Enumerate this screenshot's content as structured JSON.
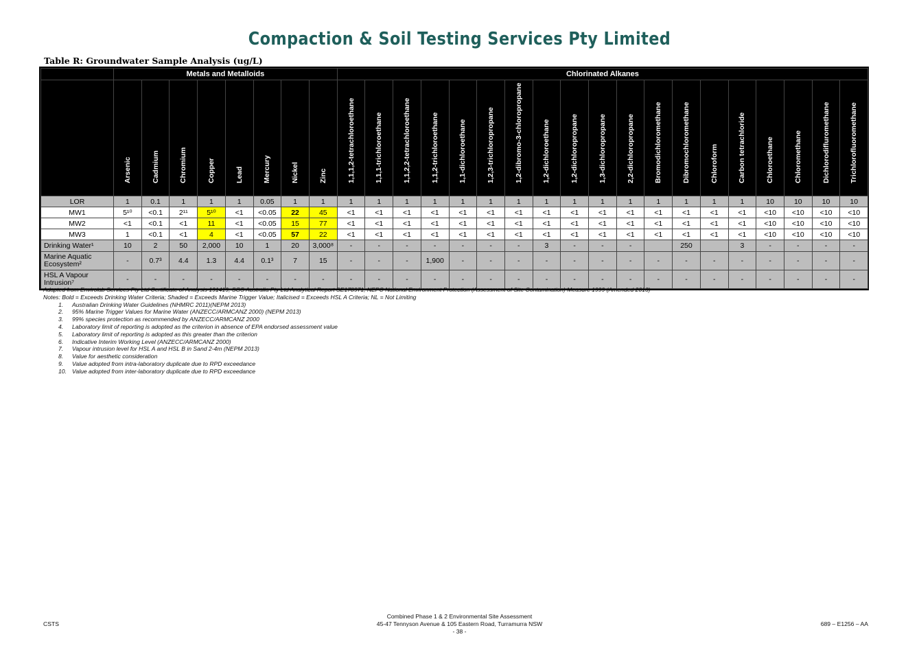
{
  "company": "Compaction & Soil Testing Services Pty Limited",
  "table_title": "Table R: Groundwater Sample Analysis (ug/L)",
  "groups": [
    "Metals and Metalloids",
    "Chlorinated Alkanes"
  ],
  "columns": [
    "Arsenic",
    "Cadmium",
    "Chromium",
    "Copper",
    "Lead",
    "Mercury",
    "Nickel",
    "Zinc",
    "1,1,1,2-tetrachloroethane",
    "1,1,1-trichloroethane",
    "1,1,2,2-tetrachloroethane",
    "1,1,2-trichloroethane",
    "1,1-dichloroethane",
    "1,2,3-trichloropropane",
    "1,2-dibromo-3-chloropropane",
    "1,2-dichloroethane",
    "1,2-dichloropropane",
    "1,3-dichloropropane",
    "2,2-dichloropropane",
    "Bromodichloromethane",
    "Dibromochloromethane",
    "Chloroform",
    "Carbon tetrachloride",
    "Chloroethane",
    "Chloromethane",
    "Dichlorodifluromethane",
    "Trichlorofluoromethane"
  ],
  "rows": [
    {
      "label": "LOR",
      "type": "lor",
      "cells": [
        "1",
        "0.1",
        "1",
        "1",
        "1",
        "0.05",
        "1",
        "1",
        "1",
        "1",
        "1",
        "1",
        "1",
        "1",
        "1",
        "1",
        "1",
        "1",
        "1",
        "1",
        "1",
        "1",
        "1",
        "10",
        "10",
        "10",
        "10"
      ]
    },
    {
      "label": "MW1",
      "type": "mw",
      "cells": [
        "5¹⁰",
        "<0.1",
        "2¹¹",
        "5¹⁰",
        "<1",
        "<0.05",
        "22",
        "45",
        "<1",
        "<1",
        "<1",
        "<1",
        "<1",
        "<1",
        "<1",
        "<1",
        "<1",
        "<1",
        "<1",
        "<1",
        "<1",
        "<1",
        "<1",
        "<10",
        "<10",
        "<10",
        "<10"
      ]
    },
    {
      "label": "MW2",
      "type": "mw",
      "cells": [
        "<1",
        "<0.1",
        "<1",
        "11",
        "<1",
        "<0.05",
        "15",
        "77",
        "<1",
        "<1",
        "<1",
        "<1",
        "<1",
        "<1",
        "<1",
        "<1",
        "<1",
        "<1",
        "<1",
        "<1",
        "<1",
        "<1",
        "<1",
        "<10",
        "<10",
        "<10",
        "<10"
      ]
    },
    {
      "label": "MW3",
      "type": "mw",
      "cells": [
        "1",
        "<0.1",
        "<1",
        "4",
        "<1",
        "<0.05",
        "57",
        "22",
        "<1",
        "<1",
        "<1",
        "<1",
        "<1",
        "<1",
        "<1",
        "<1",
        "<1",
        "<1",
        "<1",
        "<1",
        "<1",
        "<1",
        "<1",
        "<10",
        "<10",
        "<10",
        "<10"
      ]
    },
    {
      "label": "Drinking Water¹",
      "type": "crit",
      "cells": [
        "10",
        "2",
        "50",
        "2,000",
        "10",
        "1",
        "20",
        "3,000⁸",
        "-",
        "-",
        "-",
        "-",
        "-",
        "-",
        "-",
        "3",
        "-",
        "-",
        "-",
        "",
        "250",
        "",
        "3",
        "-",
        "-",
        "-",
        "-"
      ]
    },
    {
      "label": "Marine Aquatic Ecosystem²",
      "type": "crit",
      "cells": [
        "-",
        "0.7³",
        "4.4",
        "1.3",
        "4.4",
        "0.1³",
        "7",
        "15",
        "-",
        "-",
        "-",
        "1,900",
        "-",
        "-",
        "-",
        "-",
        "-",
        "-",
        "-",
        "-",
        "-",
        "-",
        "-",
        "-",
        "-",
        "-",
        "-"
      ]
    },
    {
      "label": "HSL A Vapour Intrusion⁷",
      "type": "crit",
      "cells": [
        "-",
        "-",
        "-",
        "-",
        "-",
        "-",
        "-",
        "-",
        "-",
        "-",
        "-",
        "-",
        "-",
        "-",
        "-",
        "-",
        "-",
        "-",
        "-",
        "-",
        "-",
        "-",
        "-",
        "-",
        "-",
        "-",
        "-"
      ]
    }
  ],
  "notes": {
    "source": "Adapted from Envirolab Services Pty Ltd Certificate of Analysis 191419, SGS Australia Pty Ltd Analytical Report SE178971, NEPC National Environment Protection (Assessment of Site Contamination) Measure 1999 (Amended 2013)",
    "legend": "Notes: Bold = Exceeds Drinking Water Criteria; Shaded = Exceeds Marine Trigger Value; Italicised = Exceeds HSL A Criteria; NL = Not Limiting",
    "items": [
      {
        "n": "1.",
        "t": "Australian Drinking Water Guidelines (NHMRC 2011)(NEPM 2013)"
      },
      {
        "n": "2.",
        "t": "95% Marine Trigger Values for Marine Water (ANZECC/ARMCANZ 2000) (NEPM 2013)"
      },
      {
        "n": "3.",
        "t": "99% species protection as recommended by ANZECC/ARMCANZ 2000"
      },
      {
        "n": "4.",
        "t": "Laboratory limit of reporting is adopted as the criterion in absence of EPA endorsed assessment value"
      },
      {
        "n": "5.",
        "t": "Laboratory limit of reporting is adopted as this greater than the criterion"
      },
      {
        "n": "6.",
        "t": "Indicative Interim Working Level (ANZECC/ARMCANZ 2000)"
      },
      {
        "n": "7.",
        "t": "Vapour intrusion level for HSL A and HSL B in Sand  2-4m (NEPM 2013)"
      },
      {
        "n": "8.",
        "t": "Value for aesthetic consideration"
      },
      {
        "n": "9.",
        "t": "Value adopted from intra-laboratory duplicate due to RPD exceedance"
      },
      {
        "n": "10.",
        "t": "Value adopted from inter-laboratory duplicate due to RPD exceedance"
      }
    ]
  },
  "footer": {
    "left": "CSTS",
    "center_line1": "Combined Phase 1 & 2 Environmental Site Assessment",
    "center_line2": "45-47 Tennyson Avenue & 105 Eastern Road, Turramurra NSW",
    "page": "- 38 -",
    "right": "689 – E1256 – AA"
  }
}
